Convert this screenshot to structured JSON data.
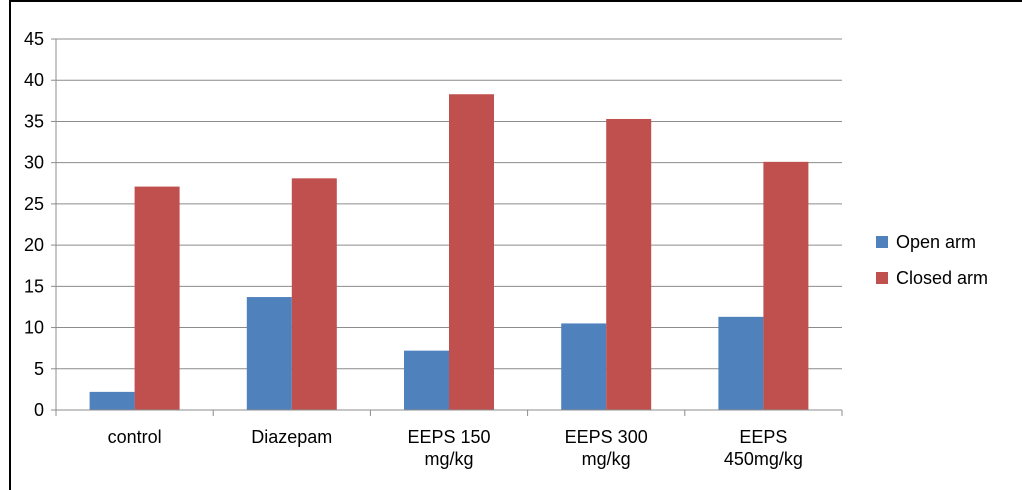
{
  "chart_data": {
    "type": "bar",
    "categories": [
      [
        "control"
      ],
      [
        "Diazepam"
      ],
      [
        "EEPS 150",
        "mg/kg"
      ],
      [
        "EEPS 300",
        "mg/kg"
      ],
      [
        "EEPS",
        "450mg/kg"
      ]
    ],
    "series": [
      {
        "name": "Open arm",
        "color": "#4F81BD",
        "values": [
          2.2,
          13.7,
          7.2,
          10.5,
          11.3
        ]
      },
      {
        "name": "Closed arm",
        "color": "#C0504D",
        "values": [
          27.1,
          28.1,
          38.3,
          35.3,
          30.1
        ]
      }
    ],
    "ylim": [
      0,
      45
    ],
    "yticks": [
      "0",
      "5",
      "10",
      "15",
      "20",
      "25",
      "30",
      "35",
      "40",
      "45"
    ],
    "grid": true,
    "legend_position": "right"
  }
}
